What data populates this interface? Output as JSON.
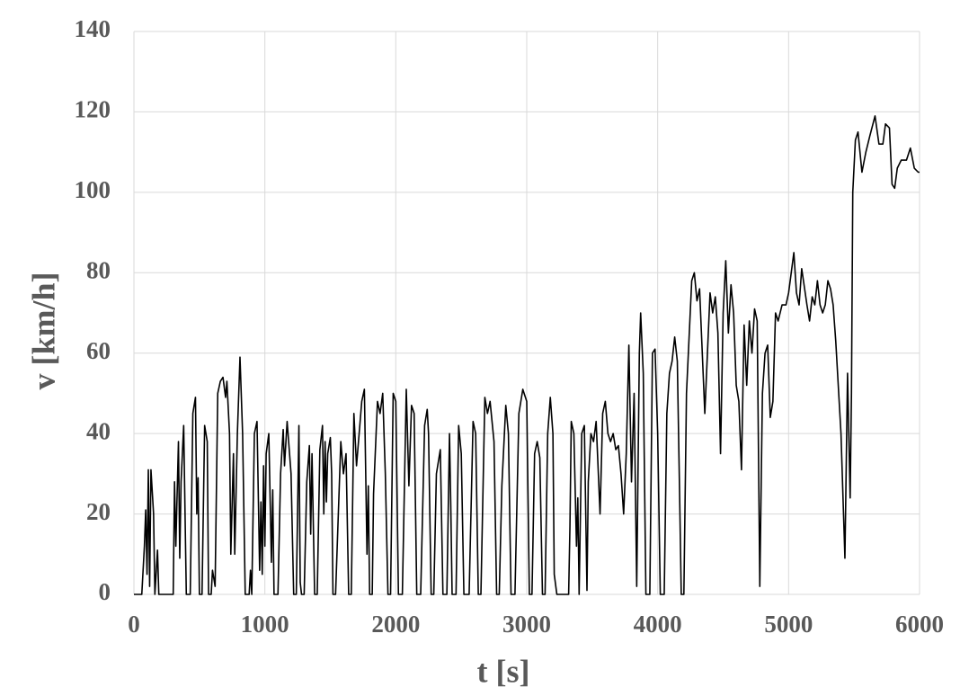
{
  "chart_data": {
    "type": "line",
    "xlabel": "t [s]",
    "ylabel": "v [km/h]",
    "x": [
      0,
      60,
      80,
      90,
      100,
      110,
      120,
      130,
      150,
      160,
      180,
      190,
      300,
      310,
      320,
      340,
      350,
      360,
      380,
      400,
      430,
      450,
      470,
      480,
      490,
      500,
      520,
      540,
      560,
      570,
      590,
      600,
      620,
      640,
      660,
      680,
      700,
      710,
      730,
      740,
      760,
      770,
      790,
      810,
      830,
      850,
      880,
      890,
      900,
      920,
      940,
      960,
      970,
      980,
      990,
      1000,
      1010,
      1030,
      1050,
      1060,
      1070,
      1100,
      1120,
      1140,
      1150,
      1170,
      1200,
      1220,
      1240,
      1260,
      1270,
      1280,
      1300,
      1320,
      1340,
      1350,
      1360,
      1380,
      1400,
      1420,
      1440,
      1450,
      1460,
      1470,
      1480,
      1500,
      1510,
      1520,
      1540,
      1580,
      1600,
      1620,
      1640,
      1660,
      1680,
      1700,
      1720,
      1740,
      1760,
      1780,
      1790,
      1800,
      1820,
      1830,
      1860,
      1880,
      1900,
      1920,
      1940,
      1960,
      1980,
      2000,
      2020,
      2050,
      2080,
      2100,
      2120,
      2140,
      2160,
      2190,
      2220,
      2240,
      2250,
      2270,
      2290,
      2310,
      2340,
      2360,
      2390,
      2410,
      2420,
      2430,
      2460,
      2480,
      2500,
      2520,
      2560,
      2590,
      2610,
      2630,
      2650,
      2680,
      2700,
      2720,
      2750,
      2770,
      2790,
      2810,
      2840,
      2860,
      2880,
      2910,
      2940,
      2970,
      3000,
      3020,
      3040,
      3060,
      3080,
      3100,
      3120,
      3140,
      3160,
      3180,
      3200,
      3210,
      3230,
      3320,
      3330,
      3340,
      3360,
      3380,
      3390,
      3400,
      3420,
      3440,
      3460,
      3470,
      3490,
      3510,
      3530,
      3560,
      3580,
      3600,
      3620,
      3640,
      3660,
      3680,
      3700,
      3720,
      3740,
      3760,
      3780,
      3800,
      3820,
      3840,
      3860,
      3870,
      3890,
      3910,
      3940,
      3960,
      3980,
      4000,
      4020,
      4050,
      4070,
      4090,
      4110,
      4130,
      4150,
      4170,
      4180,
      4200,
      4220,
      4260,
      4280,
      4300,
      4320,
      4360,
      4380,
      4400,
      4420,
      4440,
      4460,
      4480,
      4500,
      4520,
      4540,
      4560,
      4580,
      4600,
      4620,
      4640,
      4660,
      4680,
      4700,
      4720,
      4740,
      4760,
      4780,
      4800,
      4820,
      4840,
      4860,
      4880,
      4900,
      4920,
      4950,
      4980,
      5000,
      5020,
      5040,
      5060,
      5080,
      5100,
      5140,
      5160,
      5180,
      5200,
      5220,
      5240,
      5260,
      5280,
      5300,
      5320,
      5340,
      5360,
      5400,
      5430,
      5450,
      5470,
      5480,
      5490,
      5510,
      5530,
      5560,
      5590,
      5620,
      5660,
      5690,
      5720,
      5740,
      5770,
      5790,
      5810,
      5830,
      5860,
      5900,
      5930,
      5960,
      5990,
      6000
    ],
    "series": [
      {
        "name": "v",
        "color": "#000000",
        "values": [
          0,
          0,
          12,
          21,
          5,
          31,
          2,
          31,
          20,
          0,
          11,
          0,
          0,
          28,
          12,
          38,
          9,
          28,
          42,
          0,
          0,
          45,
          49,
          20,
          29,
          0,
          0,
          42,
          38,
          0,
          0,
          6,
          2,
          50,
          53,
          54,
          49,
          53,
          40,
          10,
          35,
          10,
          40,
          59,
          40,
          0,
          0,
          6,
          0,
          40,
          43,
          6,
          23,
          5,
          32,
          12,
          35,
          40,
          8,
          26,
          0,
          0,
          30,
          41,
          32,
          43,
          30,
          0,
          0,
          42,
          3,
          0,
          0,
          28,
          37,
          15,
          35,
          0,
          0,
          36,
          42,
          20,
          38,
          23,
          35,
          39,
          30,
          0,
          0,
          38,
          30,
          35,
          0,
          0,
          45,
          32,
          40,
          48,
          51,
          10,
          27,
          0,
          0,
          25,
          48,
          45,
          50,
          30,
          0,
          0,
          50,
          48,
          0,
          0,
          51,
          27,
          47,
          45,
          0,
          0,
          42,
          46,
          40,
          0,
          0,
          30,
          36,
          0,
          0,
          40,
          22,
          0,
          0,
          42,
          35,
          0,
          0,
          43,
          40,
          0,
          0,
          49,
          45,
          48,
          38,
          0,
          0,
          27,
          47,
          40,
          0,
          0,
          45,
          51,
          48,
          0,
          0,
          35,
          38,
          34,
          0,
          0,
          40,
          49,
          40,
          5,
          0,
          0,
          17,
          43,
          40,
          12,
          24,
          0,
          40,
          42,
          1,
          28,
          40,
          38,
          43,
          20,
          45,
          48,
          40,
          38,
          40,
          36,
          37,
          30,
          20,
          35,
          62,
          28,
          50,
          2,
          60,
          70,
          55,
          0,
          0,
          60,
          61,
          40,
          0,
          0,
          45,
          55,
          58,
          64,
          58,
          20,
          0,
          0,
          50,
          78,
          80,
          73,
          76,
          45,
          60,
          75,
          70,
          74,
          65,
          35,
          70,
          83,
          65,
          77,
          70,
          52,
          48,
          31,
          67,
          52,
          68,
          60,
          71,
          68,
          2,
          50,
          60,
          62,
          44,
          48,
          70,
          68,
          72,
          72,
          75,
          80,
          85,
          75,
          72,
          81,
          72,
          68,
          74,
          72,
          78,
          72,
          70,
          72,
          78,
          76,
          72,
          63,
          40,
          9,
          55,
          24,
          50,
          100,
          113,
          115,
          105,
          110,
          114,
          119,
          112,
          112,
          117,
          116,
          102,
          101,
          106,
          108,
          108,
          111,
          106,
          105,
          105
        ]
      }
    ],
    "xlim": [
      0,
      6000
    ],
    "xticks": [
      0,
      1000,
      2000,
      3000,
      4000,
      5000,
      6000
    ],
    "ylim": [
      0,
      140
    ],
    "yticks": [
      0,
      20,
      40,
      60,
      80,
      100,
      120,
      140
    ],
    "grid": true
  }
}
